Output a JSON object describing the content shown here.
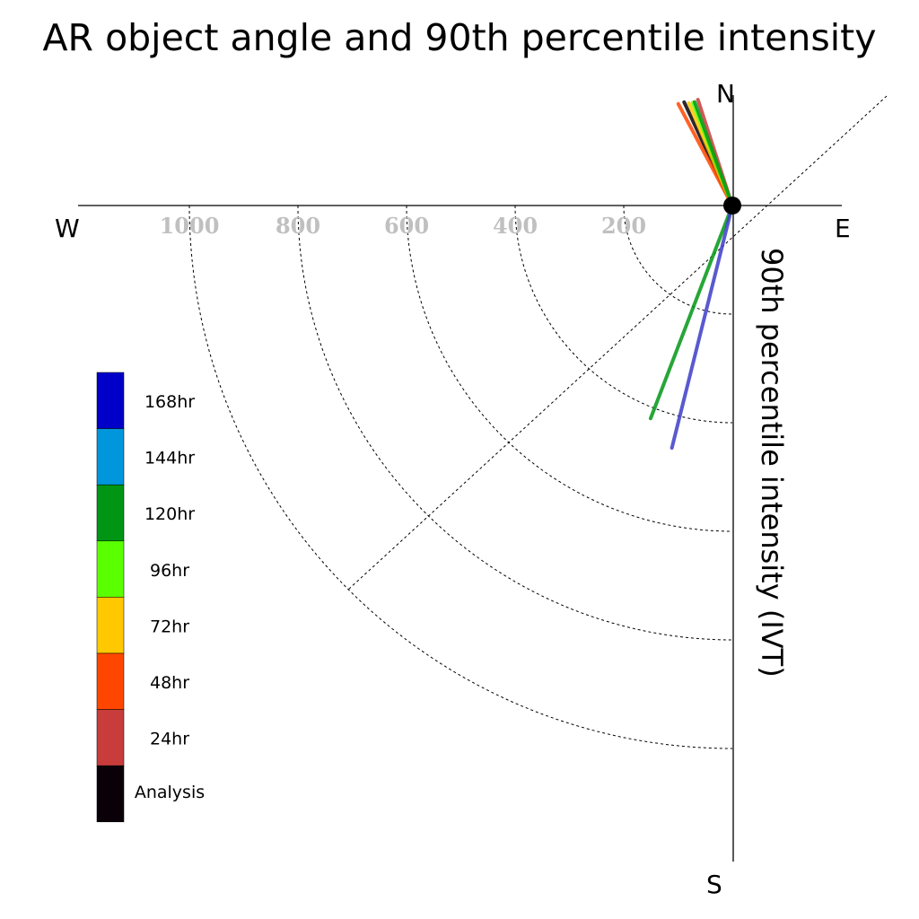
{
  "chart_data": {
    "type": "polar-vector",
    "title": "AR object angle and 90th percentile intensity",
    "ylabel": "90th percentile intensity (IVT)",
    "compass": {
      "north": "N",
      "south": "S",
      "east": "E",
      "west": "W"
    },
    "rings": [
      200,
      400,
      600,
      800,
      1000
    ],
    "ring_labels": [
      "200",
      "400",
      "600",
      "800",
      "1000"
    ],
    "diagonal_guide": true,
    "legend": [
      {
        "label": "168hr",
        "color": "#0000c8"
      },
      {
        "label": "144hr",
        "color": "#0096dc"
      },
      {
        "label": "120hr",
        "color": "#009614"
      },
      {
        "label": "96hr",
        "color": "#5aff00"
      },
      {
        "label": "72hr",
        "color": "#ffc800"
      },
      {
        "label": "48hr",
        "color": "#ff4600"
      },
      {
        "label": "24hr",
        "color": "#c83c3c"
      },
      {
        "label": "Analysis",
        "color": "#0a0008"
      }
    ],
    "series": [
      {
        "lead": "Analysis",
        "angle_deg": -25,
        "intensity": 210,
        "color": "#0a0008"
      },
      {
        "lead": "24hr",
        "angle_deg": -18,
        "intensity": 205,
        "color": "#c83c3c"
      },
      {
        "lead": "48hr",
        "angle_deg": -28,
        "intensity": 212,
        "color": "#ff4600"
      },
      {
        "lead": "72hr",
        "angle_deg": -23,
        "intensity": 205,
        "color": "#ffc800"
      },
      {
        "lead": "96hr",
        "angle_deg": -21,
        "intensity": 203,
        "color": "#5aff00"
      },
      {
        "lead": "120hr",
        "angle_deg": -20,
        "intensity": 203,
        "color": "#009614"
      },
      {
        "lead": "120hr",
        "angle_deg": 201,
        "intensity": 420,
        "color": "#009614"
      },
      {
        "lead": "168hr",
        "angle_deg": 194,
        "intensity": 460,
        "color": "#3c3cc8"
      }
    ]
  }
}
